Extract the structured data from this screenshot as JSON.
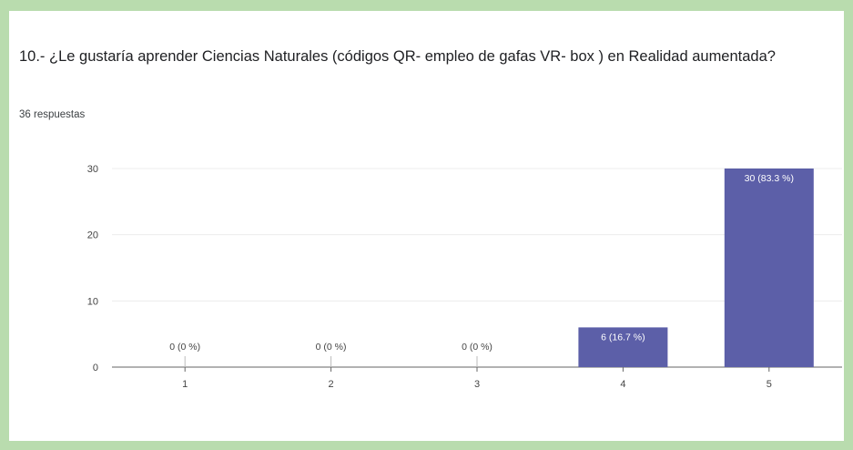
{
  "question": {
    "title": "10.- ¿Le gustaría aprender Ciencias Naturales (códigos QR- empleo de gafas VR- box ) en Realidad aumentada?",
    "responses": "36 respuestas"
  },
  "colors": {
    "bar": "#5c5fa8",
    "frame": "#b9dcae",
    "grid": "#ececec",
    "axis": "#666666"
  },
  "chart_data": {
    "type": "bar",
    "categories": [
      "1",
      "2",
      "3",
      "4",
      "5"
    ],
    "values": [
      0,
      0,
      0,
      6,
      30
    ],
    "data_labels": [
      "0 (0 %)",
      "0 (0 %)",
      "0 (0 %)",
      "6 (16.7 %)",
      "30 (83.3 %)"
    ],
    "yticks": [
      0,
      10,
      20,
      30
    ],
    "ylim": [
      0,
      30
    ],
    "grid": true,
    "legend": "none"
  }
}
